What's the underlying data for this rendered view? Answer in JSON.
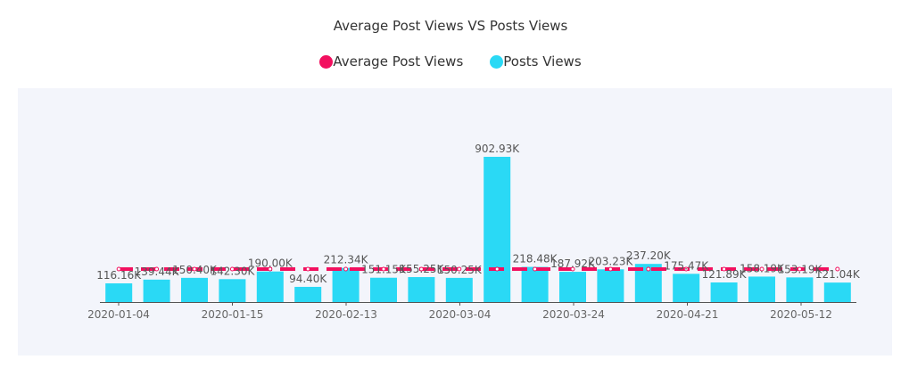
{
  "chart_data": {
    "type": "bar",
    "title": "Average Post Views VS Posts Views",
    "legend": [
      {
        "name": "Average Post Views",
        "color": "#f2105f"
      },
      {
        "name": "Posts Views",
        "color": "#2ad9f5"
      }
    ],
    "x_tick_labels": [
      "2020-01-04",
      "2020-01-15",
      "2020-02-13",
      "2020-03-04",
      "2020-03-24",
      "2020-04-21",
      "2020-05-12"
    ],
    "series": [
      {
        "name": "Posts Views",
        "type": "bar",
        "color": "#2ad9f5",
        "values": [
          116.16,
          139.44,
          150.4,
          142.3,
          190.0,
          94.4,
          212.34,
          151.15,
          155.25,
          150.25,
          902.93,
          218.48,
          187.92,
          203.23,
          237.2,
          175.47,
          121.89,
          158.19,
          153.19,
          121.04
        ],
        "labels": [
          "116.16K",
          "139.44K",
          "150.40K",
          "142.30K",
          "190.00K",
          "94.40K",
          "212.34K",
          "151.15K",
          "155.25K",
          "150.25K",
          "902.93K",
          "218.48K",
          "187.92K",
          "203.23K",
          "237.20K",
          "175.47K",
          "121.89K",
          "158.19K",
          "153.19K",
          "121.04K"
        ]
      },
      {
        "name": "Average Post Views",
        "type": "line",
        "style": "dashed",
        "color": "#f2105f",
        "value": 205.0
      }
    ],
    "ylim": [
      0,
      902.93
    ],
    "grid": false
  }
}
